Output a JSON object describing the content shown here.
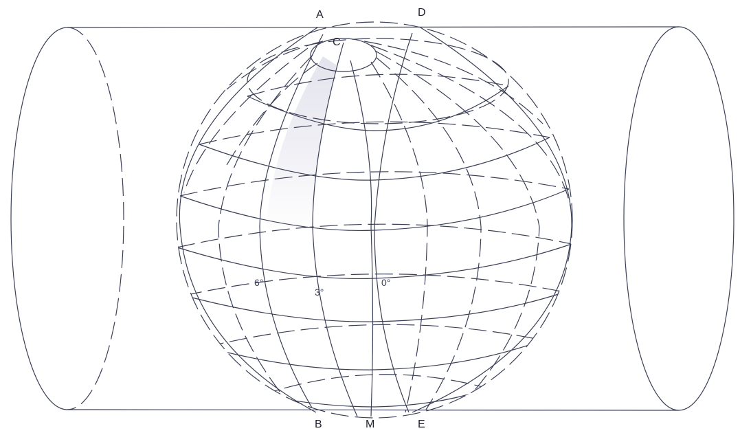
{
  "points": {
    "a": "A",
    "b": "B",
    "c": "C",
    "d": "D",
    "e": "E",
    "m": "M"
  },
  "meridian_labels": {
    "deg6": "6°",
    "deg3": "3°",
    "deg0": "0°"
  },
  "colors": {
    "line": "#3a3f55",
    "zone_shading": "#e6e6ee",
    "background": "#ffffff"
  }
}
